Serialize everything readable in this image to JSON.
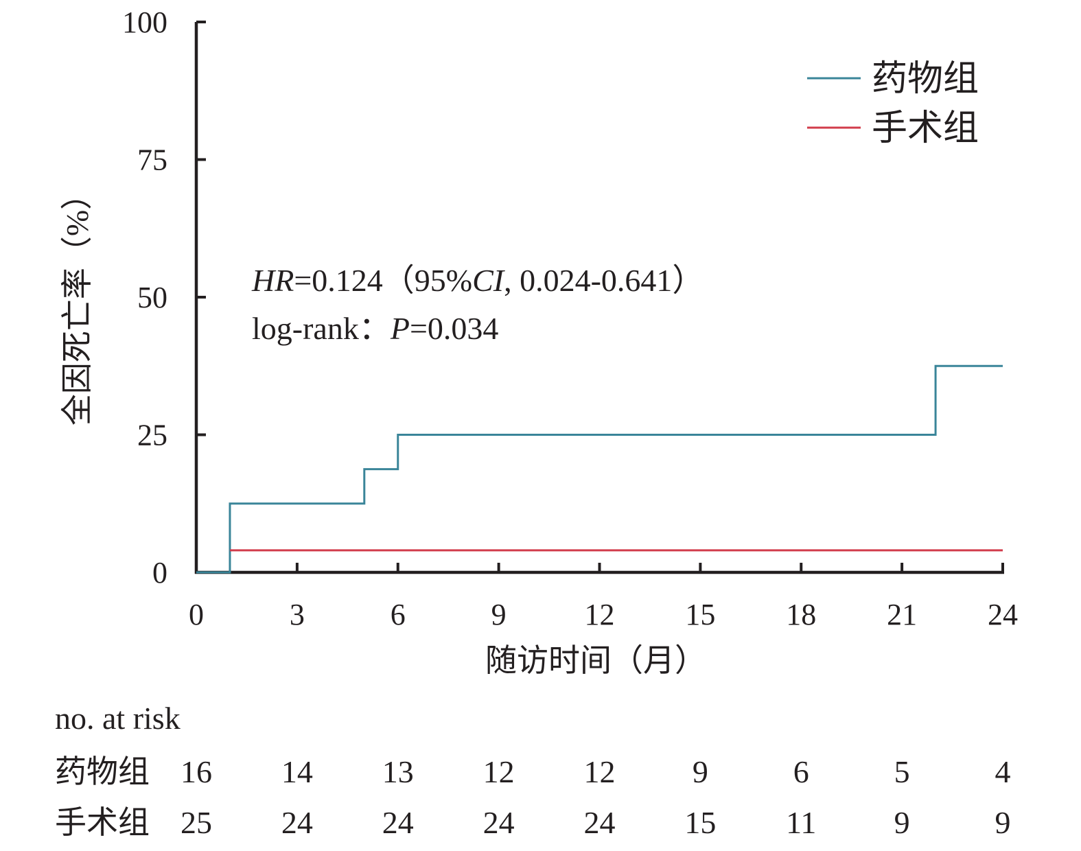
{
  "chart_data": {
    "type": "line",
    "subtype": "kaplan-meier-step",
    "title": "",
    "xlabel": "随访时间（月）",
    "ylabel": "全因死亡率（%）",
    "xlim": [
      0,
      24
    ],
    "ylim": [
      0,
      100
    ],
    "x_ticks": [
      0,
      3,
      6,
      9,
      12,
      15,
      18,
      21,
      24
    ],
    "y_ticks": [
      0,
      25,
      50,
      75,
      100
    ],
    "grid": false,
    "legend_position": "top-right",
    "series": [
      {
        "name": "药物组",
        "color": "#3a8599",
        "points": [
          [
            0,
            0
          ],
          [
            1,
            0
          ],
          [
            1,
            12.5
          ],
          [
            5,
            12.5
          ],
          [
            5,
            18.75
          ],
          [
            6,
            18.75
          ],
          [
            6,
            25
          ],
          [
            22,
            25
          ],
          [
            22,
            37.5
          ],
          [
            24,
            37.5
          ]
        ]
      },
      {
        "name": "手术组",
        "color": "#d23c4b",
        "points": [
          [
            1,
            4
          ],
          [
            24,
            4
          ]
        ]
      }
    ],
    "annotations": {
      "hr_label": "HR",
      "hr_value": "=0.124（95%",
      "ci_label": "CI",
      "ci_value": ", 0.024-0.641）",
      "logrank_label": "log-rank：",
      "p_label": "P",
      "p_value": "=0.034"
    },
    "risk_table": {
      "title": "no. at risk",
      "rows": [
        {
          "name": "药物组",
          "values": [
            16,
            14,
            13,
            12,
            12,
            9,
            6,
            5,
            4
          ]
        },
        {
          "name": "手术组",
          "values": [
            25,
            24,
            24,
            24,
            24,
            15,
            11,
            9,
            9
          ]
        }
      ]
    }
  }
}
